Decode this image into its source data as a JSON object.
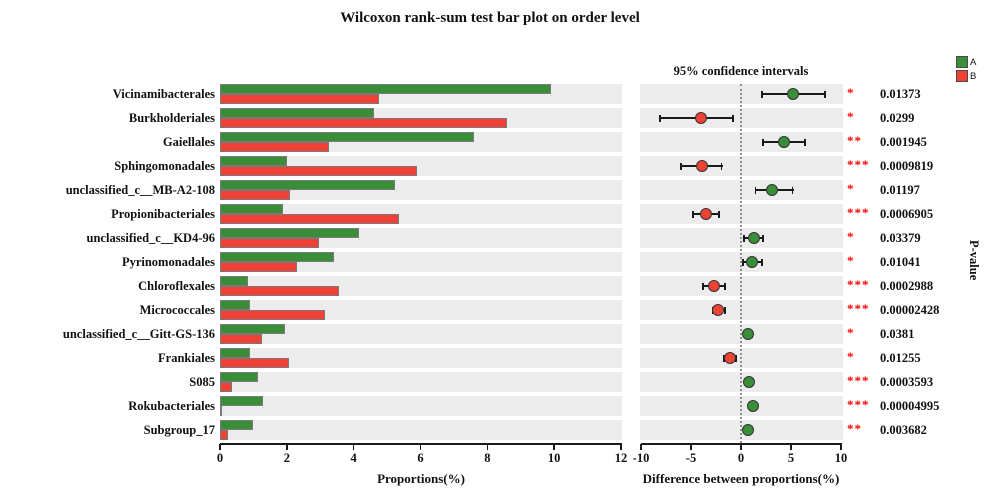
{
  "title": "Wilcoxon rank-sum test bar plot on order level",
  "legend": {
    "items": [
      {
        "label": "A",
        "color": "#3a8e3a"
      },
      {
        "label": "B",
        "color": "#ef4136"
      }
    ]
  },
  "left_panel": {
    "xlabel": "Proportions(%)",
    "ticks": [
      0,
      2,
      4,
      6,
      8,
      10,
      12
    ],
    "xlim": [
      0,
      12
    ]
  },
  "right_panel": {
    "title": "95% confidence intervals",
    "xlabel": "Difference between proportions(%)",
    "ticks": [
      -10,
      -5,
      0,
      5,
      10
    ],
    "xlim": [
      -10,
      10
    ]
  },
  "pvalue_axis_label": "P-value",
  "colors": {
    "group_a": "#3a8e3a",
    "group_b": "#ef4136",
    "star": "#fe0000",
    "band": "#ececec",
    "bar_border": "#7a7a7a"
  },
  "chart_data": {
    "type": "bar",
    "orientation": "horizontal",
    "title": "Wilcoxon rank-sum test bar plot on order level",
    "categories": [
      "Vicinamibacterales",
      "Burkholderiales",
      "Gaiellales",
      "Sphingomonadales",
      "unclassified_c__MB-A2-108",
      "Propionibacteriales",
      "unclassified_c__KD4-96",
      "Pyrinomonadales",
      "Chloroflexales",
      "Micrococcales",
      "unclassified_c__Gitt-GS-136",
      "Frankiales",
      "S085",
      "Rokubacteriales",
      "Subgroup_17"
    ],
    "series": [
      {
        "name": "A",
        "color": "#3a8e3a",
        "values": [
          9.9,
          4.6,
          7.6,
          2.0,
          5.25,
          1.9,
          4.15,
          3.4,
          0.85,
          0.9,
          1.95,
          0.9,
          1.15,
          1.3,
          1.0
        ]
      },
      {
        "name": "B",
        "color": "#ef4136",
        "values": [
          4.75,
          8.6,
          3.25,
          5.9,
          2.1,
          5.35,
          2.95,
          2.3,
          3.55,
          3.15,
          1.25,
          2.05,
          0.35,
          0.05,
          0.25
        ]
      }
    ],
    "difference": {
      "label": "Difference between proportions(%)",
      "values": [
        5.2,
        -4.0,
        4.3,
        -3.85,
        3.15,
        -3.5,
        1.3,
        1.1,
        -2.7,
        -2.3,
        0.7,
        -1.1,
        0.85,
        1.2,
        0.75
      ],
      "ci_low": [
        2.0,
        -8.2,
        2.1,
        -6.1,
        1.35,
        -4.9,
        0.2,
        0.1,
        -3.9,
        -2.95,
        0.25,
        -1.8,
        0.5,
        0.8,
        0.4
      ],
      "ci_high": [
        8.5,
        -0.7,
        6.5,
        -1.85,
        5.25,
        -2.1,
        2.3,
        2.2,
        -1.5,
        -1.5,
        1.25,
        -0.4,
        1.2,
        1.6,
        1.1
      ]
    },
    "significance": [
      "*",
      "*",
      "**",
      "***",
      "*",
      "***",
      "*",
      "*",
      "***",
      "***",
      "*",
      "*",
      "***",
      "***",
      "**"
    ],
    "pvalues": [
      "0.01373",
      "0.0299",
      "0.001945",
      "0.0009819",
      "0.01197",
      "0.0006905",
      "0.03379",
      "0.01041",
      "0.0002988",
      "0.00002428",
      "0.0381",
      "0.01255",
      "0.0003593",
      "0.00004995",
      "0.003682"
    ],
    "xlabel_left": "Proportions(%)",
    "xlim_left": [
      0,
      12
    ],
    "xlim_right": [
      -10,
      10
    ],
    "legend_position": "top-right",
    "grid": false
  }
}
